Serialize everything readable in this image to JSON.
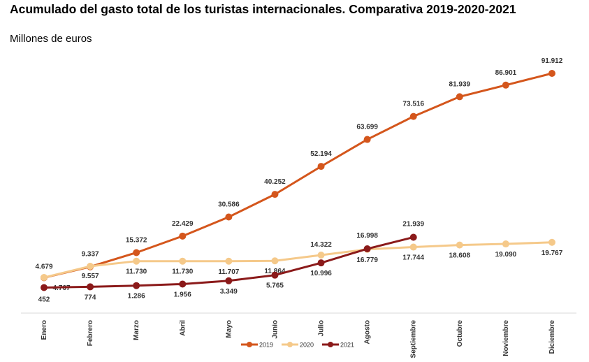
{
  "chart_data": {
    "type": "line",
    "title": "Acumulado del gasto total de los turistas internacionales. Comparativa 2019-2020-2021",
    "subtitle": "Millones de euros",
    "categories": [
      "Enero",
      "Febrero",
      "Marzo",
      "Abril",
      "Mayo",
      "Junio",
      "Julio",
      "Agosto",
      "Septiembre",
      "Octubre",
      "Noviembre",
      "Diciembre"
    ],
    "legend": "bottom",
    "series": [
      {
        "name": "2019",
        "color": "#d4561c",
        "values": [
          4679,
          9337,
          15372,
          22429,
          30586,
          40252,
          52194,
          63699,
          73516,
          81939,
          86901,
          91912
        ],
        "value_labels": [
          "4.679",
          "9.337",
          "15.372",
          "22.429",
          "30.586",
          "40.252",
          "52.194",
          "63.699",
          "73.516",
          "81.939",
          "86.901",
          "91.912"
        ]
      },
      {
        "name": "2020",
        "color": "#f5c98a",
        "values": [
          4767,
          9557,
          11730,
          11730,
          11707,
          11864,
          14322,
          16779,
          17744,
          18608,
          19090,
          19767
        ],
        "value_labels": [
          "4.767",
          "9.557",
          "11.730",
          "11.730",
          "11.707",
          "11.864",
          "14.322",
          "16.779",
          "17.744",
          "18.608",
          "19.090",
          "19.767"
        ]
      },
      {
        "name": "2021",
        "color": "#8b1a1a",
        "values": [
          452,
          774,
          1286,
          1956,
          3349,
          5765,
          10996,
          16998,
          21939,
          null,
          null,
          null
        ],
        "value_labels": [
          "452",
          "774",
          "1.286",
          "1.956",
          "3.349",
          "5.765",
          "10.996",
          "16.998",
          "21.939",
          null,
          null,
          null
        ]
      }
    ]
  }
}
